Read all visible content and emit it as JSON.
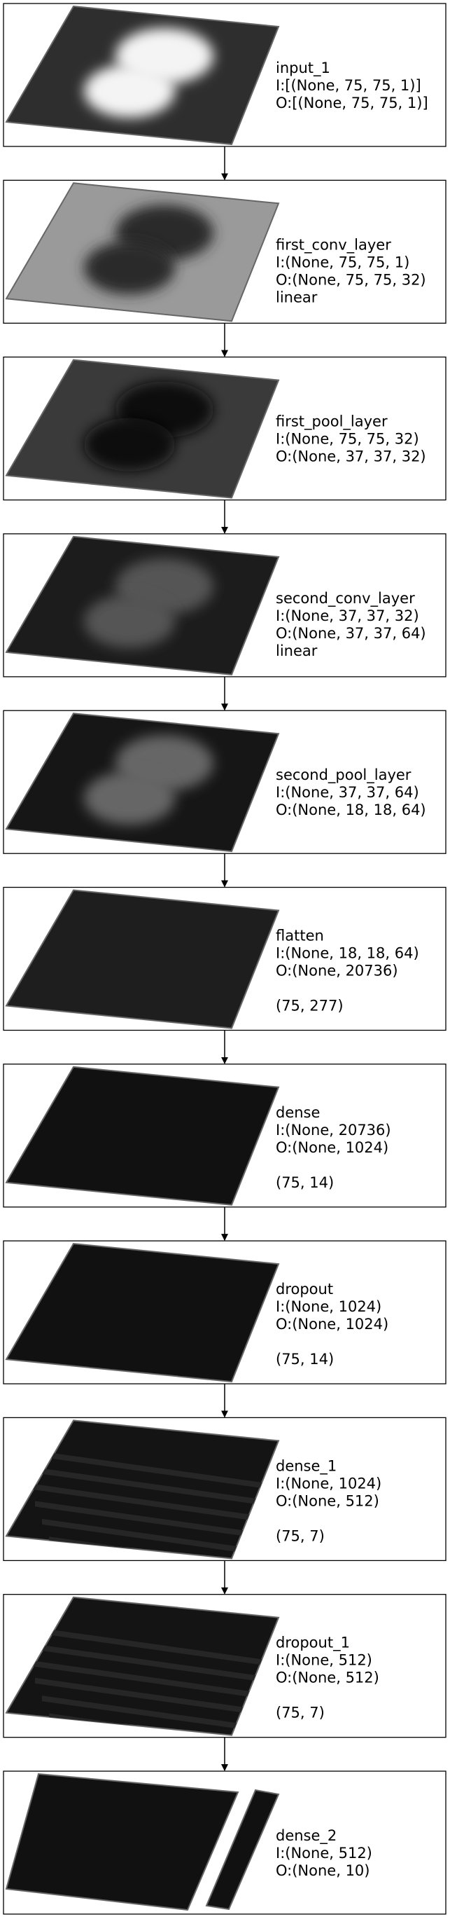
{
  "layers": [
    {
      "name": "input_1",
      "input": "I:[(None, 75, 75, 1)]",
      "output": "O:[(None, 75, 75, 1)]"
    },
    {
      "name": "first_conv_layer",
      "input": "I:(None, 75, 75, 1)",
      "output": "O:(None, 75, 75, 32)",
      "activation": "linear"
    },
    {
      "name": "first_pool_layer",
      "input": "I:(None, 75, 75, 32)",
      "output": "O:(None, 37, 37, 32)"
    },
    {
      "name": "second_conv_layer",
      "input": "I:(None, 37, 37, 32)",
      "output": "O:(None, 37, 37, 64)",
      "activation": "linear"
    },
    {
      "name": "second_pool_layer",
      "input": "I:(None, 37, 37, 64)",
      "output": "O:(None, 18, 18, 64)"
    },
    {
      "name": "flatten",
      "input": "I:(None, 18, 18, 64)",
      "output": "O:(None, 20736)",
      "shape": "(75, 277)"
    },
    {
      "name": "dense",
      "input": "I:(None, 20736)",
      "output": "O:(None, 1024)",
      "shape": "(75, 14)"
    },
    {
      "name": "dropout",
      "input": "I:(None, 1024)",
      "output": "O:(None, 1024)",
      "shape": "(75, 14)"
    },
    {
      "name": "dense_1",
      "input": "I:(None, 1024)",
      "output": "O:(None, 512)",
      "shape": "(75, 7)"
    },
    {
      "name": "dropout_1",
      "input": "I:(None, 512)",
      "output": "O:(None, 512)",
      "shape": "(75, 7)"
    },
    {
      "name": "dense_2",
      "input": "I:(None, 512)",
      "output": "O:(None, 10)"
    }
  ]
}
